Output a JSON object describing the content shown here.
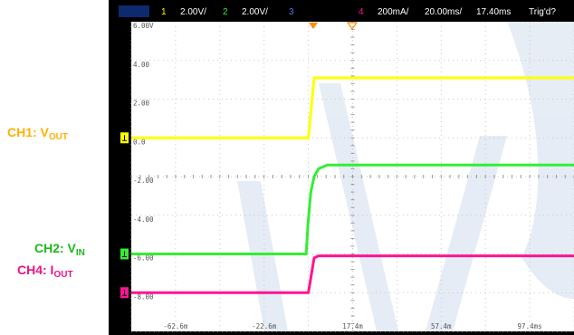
{
  "chart_data": {
    "type": "line",
    "title": "",
    "xlabel": "",
    "ylabel": "",
    "xlim": [
      -82.6,
      117.4
    ],
    "ylim": [
      -10,
      6
    ],
    "grid": true,
    "x_ticks": [
      "-62.6m",
      "-22.6m",
      "17.4m",
      "57.4m",
      "97.4ms"
    ],
    "y_ticks": [
      "6.00V",
      "4.00",
      "2.00",
      "0.0",
      "-2.00",
      "-4.00",
      "-6.00",
      "-8.00"
    ],
    "series": [
      {
        "name": "CH1: V",
        "name_sub": "OUT",
        "color": "#ffff00",
        "x": [
          -82.6,
          -2.6,
          0.0,
          117.4
        ],
        "y": [
          0.0,
          0.0,
          3.1,
          3.1
        ]
      },
      {
        "name": "CH2: V",
        "name_sub": "IN",
        "color": "#33ee33",
        "x": [
          -82.6,
          -3.6,
          -2.8,
          -1.5,
          0.0,
          2.0,
          6.0,
          117.4
        ],
        "y": [
          -6.0,
          -6.0,
          -4.5,
          -2.8,
          -2.0,
          -1.6,
          -1.4,
          -1.4
        ]
      },
      {
        "name": "CH4: I",
        "name_sub": "OUT",
        "color": "#ff1493",
        "x": [
          -82.6,
          -2.6,
          0.0,
          2.0,
          117.4
        ],
        "y": [
          -8.0,
          -8.0,
          -6.2,
          -6.1,
          -6.1
        ]
      }
    ]
  },
  "status_bar": {
    "ch1_num": "1",
    "ch1_scale": "2.00V/",
    "ch2_num": "2",
    "ch2_scale": "2.00V/",
    "ch3_num": "3",
    "ch4_num": "4",
    "ch4_scale": "200mA/",
    "timebase": "20.00ms/",
    "delay": "17.40ms",
    "trigger": "Trig'd?"
  },
  "colors": {
    "ch1": "#ffff00",
    "ch2": "#33ee33",
    "ch3": "#4a7ff0",
    "ch4": "#ff1493",
    "ch1_side_label": "#ffb000",
    "ch2_side_label": "#1cb81c",
    "ch4_side_label": "#ee1285",
    "screen": "#ffffff",
    "grid": "#c8c8c8",
    "trigger_marker": "#ff8c00"
  }
}
